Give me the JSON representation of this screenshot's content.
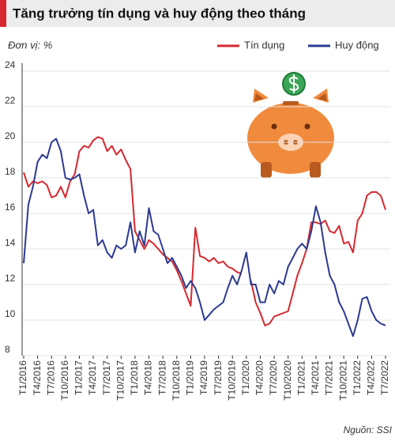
{
  "chart_data": {
    "type": "line",
    "title": "Tăng trưởng tín dụng và huy động theo tháng",
    "unit_label": "Đơn vị: %",
    "source": "Nguồn: SSI",
    "categories": [
      "T1/2016",
      null,
      null,
      "T4/2016",
      null,
      null,
      "T7/2016",
      null,
      null,
      "T10/2016",
      null,
      null,
      "T1/2017",
      null,
      null,
      "T4/2017",
      null,
      null,
      "T7/2017",
      null,
      null,
      "T10/2017",
      null,
      null,
      "T1/2018",
      null,
      null,
      "T4/2018",
      null,
      null,
      "T7/2018",
      null,
      null,
      "T10/2018",
      null,
      null,
      "T1/2019",
      null,
      null,
      "T4/2019",
      null,
      null,
      "T7/2019",
      null,
      null,
      "T10/2019",
      null,
      null,
      "T1/2020",
      null,
      null,
      "T4/2020",
      null,
      null,
      "T7/2020",
      null,
      null,
      "T10/2020",
      null,
      null,
      "T1/2021",
      null,
      null,
      "T4/2021",
      null,
      null,
      "T7/2021",
      null,
      null,
      "T10/2021",
      null,
      null,
      "T1/2022",
      null,
      null,
      "T4/2022",
      null,
      null,
      "T7/2022"
    ],
    "series": [
      {
        "name": "Tín dụng",
        "color": "#d7282f",
        "values": [
          18.3,
          17.5,
          17.8,
          17.7,
          17.8,
          17.6,
          16.9,
          17.0,
          17.5,
          16.9,
          17.8,
          18.2,
          19.5,
          19.8,
          19.7,
          20.1,
          20.3,
          20.2,
          19.5,
          19.8,
          19.3,
          19.6,
          19.0,
          18.5,
          15.0,
          14.5,
          14.0,
          14.5,
          14.3,
          14.0,
          13.7,
          13.5,
          13.3,
          12.8,
          12.2,
          11.5,
          10.8,
          15.2,
          13.6,
          13.5,
          13.3,
          13.5,
          13.2,
          13.3,
          13.0,
          12.9,
          12.7,
          12.6,
          null,
          12.2,
          11.0,
          10.4,
          9.7,
          9.8,
          10.2,
          10.3,
          10.4,
          10.5,
          11.5,
          12.5,
          13.2,
          14.0,
          15.5,
          15.5,
          15.4,
          15.6,
          15.0,
          14.9,
          15.3,
          14.3,
          14.4,
          13.8,
          15.6,
          16.0,
          17.0,
          17.2,
          17.2,
          17.0,
          16.2
        ]
      },
      {
        "name": "Huy động",
        "color": "#2b3990",
        "values": [
          13.2,
          16.5,
          17.5,
          18.9,
          19.3,
          19.1,
          20.0,
          20.2,
          19.5,
          18.0,
          17.9,
          18.0,
          18.2,
          17.0,
          16.0,
          16.2,
          14.2,
          14.5,
          13.8,
          13.5,
          14.2,
          14.0,
          14.2,
          15.5,
          13.8,
          15.0,
          14.2,
          16.3,
          15.0,
          14.8,
          14.0,
          13.2,
          13.5,
          13.0,
          12.5,
          11.8,
          12.2,
          11.8,
          11.0,
          10.0,
          10.3,
          10.6,
          10.8,
          11.0,
          11.8,
          12.5,
          12.0,
          12.8,
          13.8,
          12.0,
          12.0,
          11.0,
          11.0,
          12.0,
          11.5,
          12.2,
          12.0,
          13.0,
          13.5,
          14.0,
          14.3,
          14.0,
          15.0,
          16.4,
          15.5,
          13.8,
          12.5,
          12.0,
          11.0,
          10.5,
          9.8,
          9.1,
          10.0,
          11.2,
          11.3,
          10.5,
          10.0,
          9.8,
          9.7
        ]
      }
    ],
    "ylim": [
      8,
      24
    ],
    "yticks": [
      8,
      10,
      12,
      14,
      16,
      18,
      20,
      22,
      24
    ],
    "grid": true
  }
}
